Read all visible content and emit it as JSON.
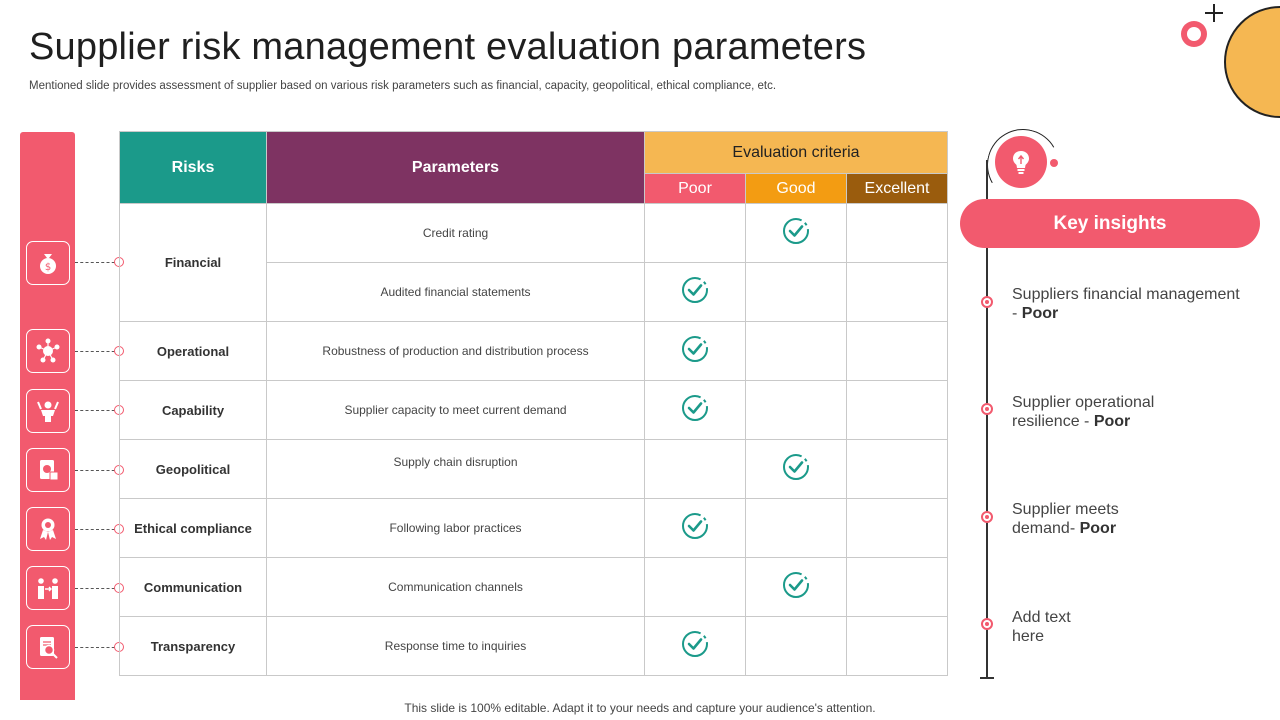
{
  "title": "Supplier risk management  evaluation parameters",
  "subtitle": "Mentioned slide provides assessment of supplier based on various risk parameters such as financial, capacity, geopolitical, ethical compliance, etc.",
  "footer": "This slide is 100% editable. Adapt it to your needs and capture your audience's attention.",
  "table": {
    "headers": {
      "risks": "Risks",
      "parameters": "Parameters",
      "evaluation": "Evaluation criteria",
      "poor": "Poor",
      "good": "Good",
      "excellent": "Excellent"
    },
    "rows": [
      {
        "risk": "Financial",
        "parameter": "Credit rating",
        "rating": "Good"
      },
      {
        "risk": "",
        "parameter": "Audited financial statements",
        "rating": "Poor"
      },
      {
        "risk": "Operational",
        "parameter": "Robustness of production and distribution process",
        "rating": "Poor"
      },
      {
        "risk": "Capability",
        "parameter": "Supplier capacity to meet current demand",
        "rating": "Poor"
      },
      {
        "risk": "Geopolitical",
        "parameter": "Supply chain disruption",
        "rating": "Good"
      },
      {
        "risk": "Ethical compliance",
        "parameter": "Following labor practices",
        "rating": "Poor"
      },
      {
        "risk": "Communication",
        "parameter": "Communication channels",
        "rating": "Good"
      },
      {
        "risk": "Transparency",
        "parameter": "Response time to inquiries",
        "rating": "Poor"
      }
    ]
  },
  "sidebar_icons": [
    "money-bag-icon",
    "network-icon",
    "person-achievement-icon",
    "document-dollar-icon",
    "award-ribbon-icon",
    "people-exchange-icon",
    "report-search-icon"
  ],
  "key_insights": {
    "label": "Key insights",
    "items": [
      {
        "text": "Suppliers financial management - ",
        "bold": "Poor"
      },
      {
        "text": "Supplier operational resilience - ",
        "bold": "Poor"
      },
      {
        "text": "Supplier meets demand- ",
        "bold": "Poor"
      },
      {
        "text": "Add text here",
        "bold": ""
      }
    ]
  },
  "colors": {
    "accent_red": "#f25a6e",
    "teal": "#1b9a8a",
    "plum": "#7e3362",
    "amber": "#f5b752",
    "orange": "#f39c12",
    "brown": "#9a5c0d"
  }
}
